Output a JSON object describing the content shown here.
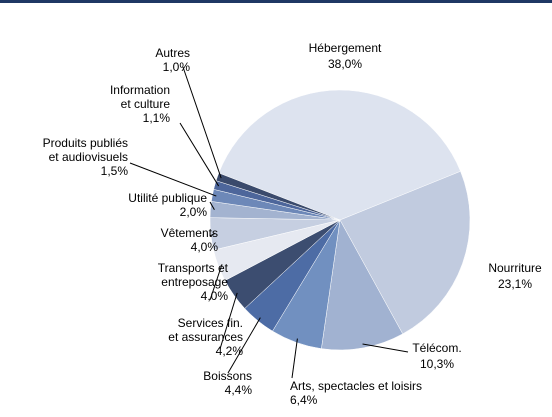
{
  "chart_data": {
    "type": "pie",
    "categories": [
      "Hébergement",
      "Nourriture",
      "Télécom.",
      "Arts, spectacles et loisirs",
      "Boissons",
      "Services fin.\net assurances",
      "Transports et\nentreposage",
      "Vêtements",
      "Utilité publique",
      "Produits publiés\net audiovisuels",
      "Information\net culture",
      "Autres"
    ],
    "values": [
      38.0,
      23.1,
      10.3,
      6.4,
      4.4,
      4.2,
      4.0,
      4.0,
      2.0,
      1.5,
      1.1,
      1.0
    ],
    "value_labels": [
      "38,0%",
      "23,1%",
      "10,3%",
      "6,4%",
      "4,4%",
      "4,2%",
      "4,0%",
      "4,0%",
      "2,0%",
      "1,5%",
      "1,1%",
      "1,0%"
    ],
    "colors": [
      "#dde3ef",
      "#c1cbdf",
      "#a1b2d1",
      "#7190c0",
      "#4d6ca5",
      "#3c4d70",
      "#e6e9f1",
      "#c6cfe1",
      "#a3b3d0",
      "#6d88b8",
      "#4d669b",
      "#3a4a6c"
    ]
  }
}
